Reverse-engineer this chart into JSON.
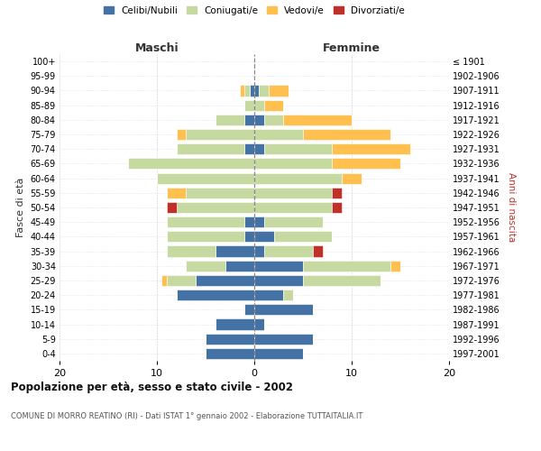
{
  "age_groups": [
    "0-4",
    "5-9",
    "10-14",
    "15-19",
    "20-24",
    "25-29",
    "30-34",
    "35-39",
    "40-44",
    "45-49",
    "50-54",
    "55-59",
    "60-64",
    "65-69",
    "70-74",
    "75-79",
    "80-84",
    "85-89",
    "90-94",
    "95-99",
    "100+"
  ],
  "birth_years": [
    "1997-2001",
    "1992-1996",
    "1987-1991",
    "1982-1986",
    "1977-1981",
    "1972-1976",
    "1967-1971",
    "1962-1966",
    "1957-1961",
    "1952-1956",
    "1947-1951",
    "1942-1946",
    "1937-1941",
    "1932-1936",
    "1927-1931",
    "1922-1926",
    "1917-1921",
    "1912-1916",
    "1907-1911",
    "1902-1906",
    "≤ 1901"
  ],
  "maschi": {
    "celibi": [
      5,
      5,
      4,
      1,
      8,
      6,
      3,
      4,
      1,
      1,
      0,
      0,
      0,
      0,
      1,
      0,
      1,
      0,
      0.5,
      0,
      0
    ],
    "coniugati": [
      0,
      0,
      0,
      0,
      0,
      3,
      4,
      5,
      8,
      8,
      8,
      7,
      10,
      13,
      7,
      7,
      3,
      1,
      0.5,
      0,
      0
    ],
    "vedovi": [
      0,
      0,
      0,
      0,
      0,
      0.5,
      0,
      0,
      0,
      0,
      0,
      2,
      0,
      0,
      0,
      1,
      0,
      0,
      0.5,
      0,
      0
    ],
    "divorziati": [
      0,
      0,
      0,
      0,
      0,
      0,
      0,
      0,
      0,
      0,
      1,
      0,
      0,
      0,
      0,
      0,
      0,
      0,
      0,
      0,
      0
    ]
  },
  "femmine": {
    "nubili": [
      5,
      6,
      1,
      6,
      3,
      5,
      5,
      1,
      2,
      1,
      0,
      0,
      0,
      0,
      1,
      0,
      1,
      0,
      0.5,
      0,
      0
    ],
    "coniugate": [
      0,
      0,
      0,
      0,
      1,
      8,
      9,
      5,
      6,
      6,
      8,
      8,
      9,
      8,
      7,
      5,
      2,
      1,
      1,
      0,
      0
    ],
    "vedove": [
      0,
      0,
      0,
      0,
      0,
      0,
      1,
      0,
      0,
      0,
      0,
      0,
      2,
      7,
      8,
      9,
      7,
      2,
      2,
      0,
      0
    ],
    "divorziate": [
      0,
      0,
      0,
      0,
      0,
      0,
      0,
      1,
      0,
      0,
      1,
      1,
      0,
      0,
      0,
      0,
      0,
      0,
      0,
      0,
      0
    ]
  },
  "colors": {
    "celibi": "#4472a4",
    "coniugati": "#c5d9a0",
    "vedovi": "#ffc050",
    "divorziati": "#c0302a"
  },
  "xlim": 20,
  "title": "Popolazione per età, sesso e stato civile - 2002",
  "subtitle": "COMUNE DI MORRO REATINO (RI) - Dati ISTAT 1° gennaio 2002 - Elaborazione TUTTAITALIA.IT",
  "xlabel_left": "Maschi",
  "xlabel_right": "Femmine",
  "ylabel_left": "Fasce di età",
  "ylabel_right": "Anni di nascita",
  "legend_labels": [
    "Celibi/Nubili",
    "Coniugati/e",
    "Vedovi/e",
    "Divorziati/e"
  ]
}
